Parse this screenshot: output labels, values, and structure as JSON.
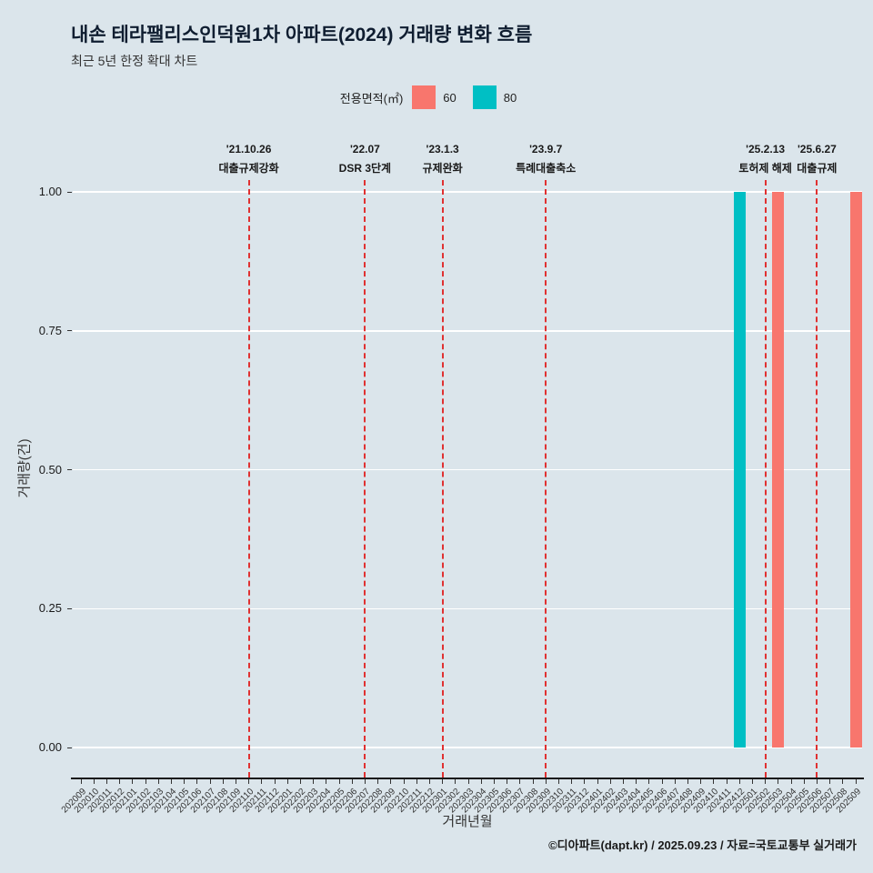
{
  "header": {
    "title": "내손 테라팰리스인덕원1차 아파트(2024) 거래량 변화 흐름",
    "subtitle": "최근 5년 한정 확대 차트"
  },
  "legend": {
    "title": "전용면적(㎡)",
    "items": [
      {
        "label": "60",
        "color": "#f8766d"
      },
      {
        "label": "80",
        "color": "#00bfc4"
      }
    ]
  },
  "chart_data": {
    "type": "bar",
    "title": "내손 테라팰리스인덕원1차 아파트(2024) 거래량 변화 흐름",
    "subtitle": "최근 5년 한정 확대 차트",
    "xlabel": "거래년월",
    "ylabel": "거래량(건)",
    "ylim": [
      0,
      1
    ],
    "yticks": [
      0,
      0.25,
      0.5,
      0.75,
      1
    ],
    "ytick_labels": [
      "0.00",
      "0.25",
      "0.50",
      "0.75",
      "1.00"
    ],
    "grid": "horizontal-white",
    "legend_position": "top-center",
    "categories": [
      "202009",
      "202010",
      "202011",
      "202012",
      "202101",
      "202102",
      "202103",
      "202104",
      "202105",
      "202106",
      "202107",
      "202108",
      "202109",
      "202110",
      "202111",
      "202112",
      "202201",
      "202202",
      "202203",
      "202204",
      "202205",
      "202206",
      "202207",
      "202208",
      "202209",
      "202210",
      "202211",
      "202212",
      "202301",
      "202302",
      "202303",
      "202304",
      "202305",
      "202306",
      "202307",
      "202308",
      "202309",
      "202310",
      "202311",
      "202312",
      "202401",
      "202402",
      "202403",
      "202404",
      "202405",
      "202406",
      "202407",
      "202408",
      "202409",
      "202410",
      "202411",
      "202412",
      "202501",
      "202502",
      "202503",
      "202504",
      "202505",
      "202506",
      "202507",
      "202508",
      "202509"
    ],
    "series": [
      {
        "name": "60",
        "color": "#f8766d",
        "bars": [
          {
            "category": "202503",
            "value": 1
          },
          {
            "category": "202509",
            "value": 1
          }
        ]
      },
      {
        "name": "80",
        "color": "#00bfc4",
        "bars": [
          {
            "category": "202412",
            "value": 1
          }
        ]
      }
    ],
    "annotations": [
      {
        "category": "202110",
        "date": "'21.10.26",
        "label": "대출규제강화"
      },
      {
        "category": "202207",
        "date": "'22.07",
        "label": "DSR 3단계"
      },
      {
        "category": "202301",
        "date": "'23.1.3",
        "label": "규제완화"
      },
      {
        "category": "202309",
        "date": "'23.9.7",
        "label": "특례대출축소"
      },
      {
        "category": "202502",
        "date": "'25.2.13",
        "label": "토허제 해제"
      },
      {
        "category": "202506",
        "date": "'25.6.27",
        "label": "대출규제"
      }
    ],
    "annotation_line_color": "#e03131",
    "grid_color": "#ffffff",
    "background_color": "#dbe5eb"
  },
  "footer": {
    "credit": "©디아파트(dapt.kr) / 2025.09.23 / 자료=국토교통부 실거래가"
  }
}
